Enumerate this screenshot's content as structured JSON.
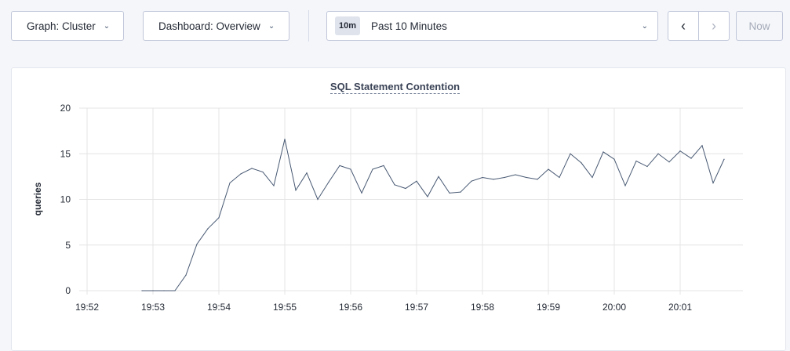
{
  "toolbar": {
    "graph_label": "Graph: Cluster",
    "dashboard_label": "Dashboard: Overview",
    "time_badge": "10m",
    "time_label": "Past 10 Minutes",
    "prev_icon": "chevron-left-icon",
    "next_icon": "chevron-right-icon",
    "now_label": "Now"
  },
  "chart_data": {
    "type": "line",
    "title": "SQL Statement Contention",
    "ylabel": "queries",
    "xlabel": "",
    "ylim": [
      0,
      20
    ],
    "yticks": [
      0,
      5,
      10,
      15,
      20
    ],
    "xticks": [
      "19:52",
      "19:53",
      "19:54",
      "19:55",
      "19:56",
      "19:57",
      "19:58",
      "19:59",
      "20:00",
      "20:01"
    ],
    "grid": true,
    "line_color": "#475872",
    "x": [
      "19:52:50",
      "19:53:00",
      "19:53:10",
      "19:53:20",
      "19:53:30",
      "19:53:40",
      "19:53:50",
      "19:54:00",
      "19:54:10",
      "19:54:20",
      "19:54:30",
      "19:54:40",
      "19:54:50",
      "19:55:00",
      "19:55:10",
      "19:55:20",
      "19:55:30",
      "19:55:40",
      "19:55:50",
      "19:56:00",
      "19:56:10",
      "19:56:20",
      "19:56:30",
      "19:56:40",
      "19:56:50",
      "19:57:00",
      "19:57:10",
      "19:57:20",
      "19:57:30",
      "19:57:40",
      "19:57:50",
      "19:58:00",
      "19:58:10",
      "19:58:20",
      "19:58:30",
      "19:58:40",
      "19:58:50",
      "19:59:00",
      "19:59:10",
      "19:59:20",
      "19:59:30",
      "19:59:40",
      "19:59:50",
      "20:00:00",
      "20:00:10",
      "20:00:20",
      "20:00:30",
      "20:00:40",
      "20:00:50",
      "20:01:00",
      "20:01:10",
      "20:01:20",
      "20:01:30",
      "20:01:40"
    ],
    "values": [
      0,
      0,
      0,
      0,
      1.7,
      5.1,
      6.8,
      8.0,
      11.8,
      12.8,
      13.4,
      13.0,
      11.5,
      16.6,
      11.0,
      12.9,
      10.0,
      11.9,
      13.7,
      13.3,
      10.7,
      13.3,
      13.7,
      11.6,
      11.2,
      12.0,
      10.3,
      12.5,
      10.7,
      10.8,
      12.0,
      12.4,
      12.2,
      12.4,
      12.7,
      12.4,
      12.2,
      13.3,
      12.4,
      15.0,
      14.0,
      12.4,
      15.2,
      14.4,
      11.5,
      14.2,
      13.6,
      15.0,
      14.1,
      15.3,
      14.5,
      15.9,
      11.8,
      14.4
    ]
  }
}
